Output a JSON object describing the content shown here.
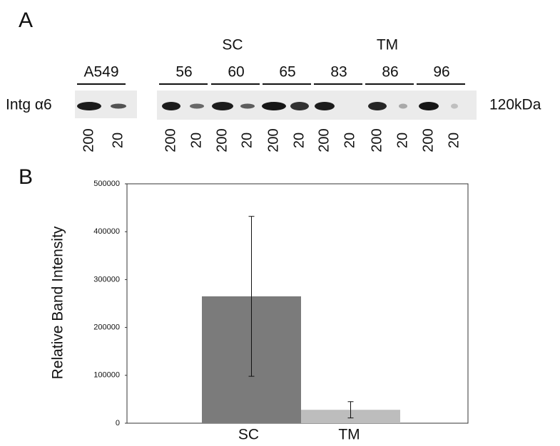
{
  "panel_a": {
    "letter": "A",
    "reference": "A549",
    "group_headers": [
      "SC",
      "TM"
    ],
    "groups": [
      "56",
      "60",
      "65",
      "83",
      "86",
      "96"
    ],
    "protein": "Intg α6",
    "size": "120kDa",
    "lane_labels": [
      "200",
      "20",
      "200",
      "20",
      "200",
      "20",
      "200",
      "20",
      "200",
      "20",
      "200",
      "20",
      "200",
      "20"
    ]
  },
  "chart_data": {
    "type": "bar",
    "letter": "B",
    "ylabel": "Relative Band Intensity",
    "categories": [
      "SC",
      "TM"
    ],
    "values": [
      265000,
      28000
    ],
    "errors": [
      167000,
      17000
    ],
    "colors": [
      "#7b7b7b",
      "#bdbdbd"
    ],
    "ylim": [
      0,
      500000
    ],
    "yticks": [
      0,
      100000,
      200000,
      300000,
      400000,
      500000
    ]
  }
}
